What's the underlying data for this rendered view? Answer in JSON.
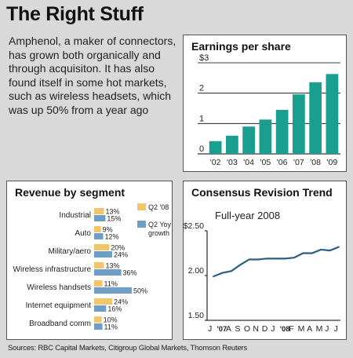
{
  "header": {
    "title": "The Right Stuff"
  },
  "intro": {
    "text": "Amphenol, a maker of connectors, has grown both organically and through acquisiton. It has also found itself in some hot markets, such as wireless headsets, which was up 50% from a year ago"
  },
  "footer": {
    "sources": "Sources: RBC Capital Markets, Citigroup Global Markets, Thomson Reuters"
  },
  "colors": {
    "teal": "#1a9e8f",
    "gold": "#f2c56b",
    "blue": "#6e9ec6",
    "line": "#2a5f80"
  },
  "chart_data": [
    {
      "type": "bar",
      "title": "Earnings per share",
      "categories": [
        "'02",
        "'03",
        "'04",
        "'05",
        "'06",
        "'07",
        "'08",
        "'09"
      ],
      "values": [
        0.42,
        0.6,
        0.9,
        1.13,
        1.45,
        1.96,
        2.36,
        2.63
      ],
      "ylim": [
        0,
        3
      ],
      "yticks": [
        {
          "v": 0,
          "label": "0"
        },
        {
          "v": 1,
          "label": "1"
        },
        {
          "v": 2,
          "label": "2"
        },
        {
          "v": 3,
          "label": "$3"
        }
      ]
    },
    {
      "type": "bar",
      "orientation": "horizontal",
      "title": "Revenue by segment",
      "legend": [
        {
          "name": "Q2 '08",
          "color": "#f2c56b"
        },
        {
          "name": "Q2 Yoy growth",
          "color": "#6e9ec6"
        }
      ],
      "categories": [
        "Industrial",
        "Auto",
        "Military/aero",
        "Wireless infrastructure",
        "Wireless handsets",
        "Internet equipment",
        "Broadband comm"
      ],
      "series": [
        {
          "name": "Q2 '08",
          "values": [
            13,
            9,
            20,
            13,
            11,
            24,
            10
          ],
          "labels": [
            "13%",
            "9%",
            "20%",
            "13%",
            "11%",
            "24%",
            "10%"
          ]
        },
        {
          "name": "Q2 Yoy growth",
          "values": [
            15,
            12,
            24,
            36,
            50,
            16,
            11
          ],
          "labels": [
            "15%",
            "12%",
            "24%",
            "36%",
            "50%",
            "16%",
            "11%"
          ]
        }
      ]
    },
    {
      "type": "line",
      "title": "Consensus Revision Trend",
      "subtitle": "Full-year 2008",
      "xticks": [
        "J",
        "'07",
        "A",
        "S",
        "O",
        "N",
        "D",
        "J",
        "'08",
        "F",
        "M",
        "A",
        "M",
        "J",
        "J"
      ],
      "ylim": [
        1.5,
        2.5
      ],
      "yticks": [
        {
          "v": 1.5,
          "label": "1.50"
        },
        {
          "v": 2.0,
          "label": "2.00"
        },
        {
          "v": 2.5,
          "label": "$2.50"
        }
      ],
      "values": [
        1.99,
        2.03,
        2.05,
        2.12,
        2.18,
        2.18,
        2.19,
        2.19,
        2.19,
        2.2,
        2.25,
        2.25,
        2.29,
        2.28,
        2.32
      ]
    }
  ]
}
